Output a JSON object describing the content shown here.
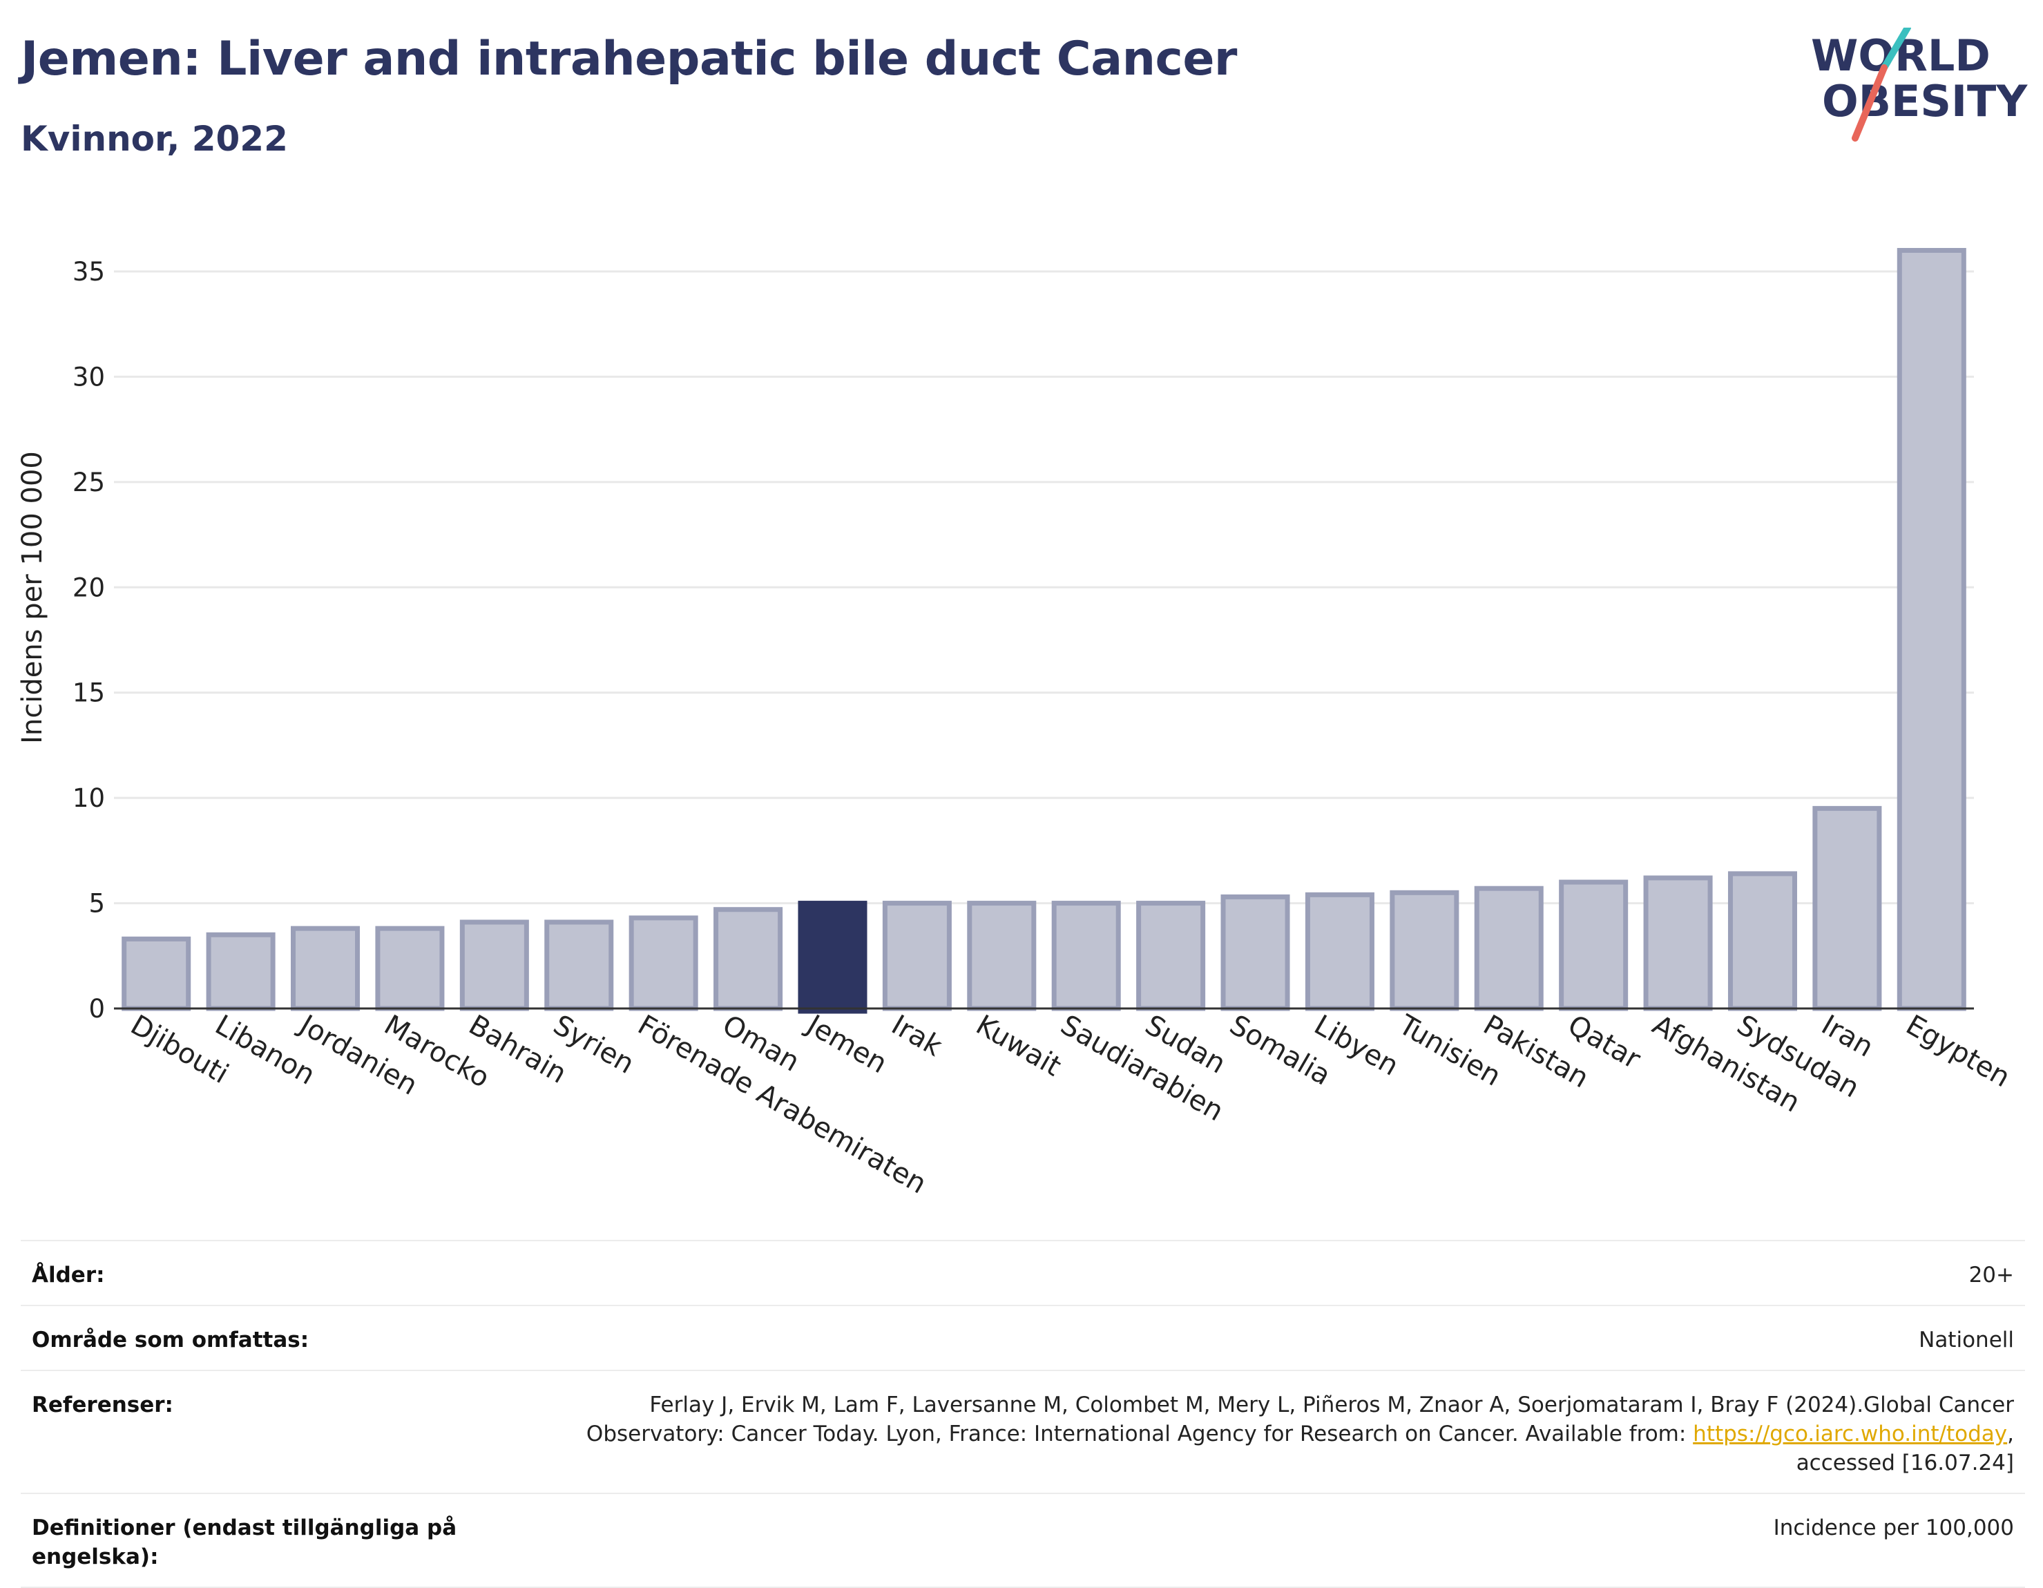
{
  "header": {
    "title": "Jemen: Liver and intrahepatic bile duct Cancer",
    "subtitle": "Kvinnor, 2022"
  },
  "logo": {
    "line1": "WORLD",
    "line2": "OBESITY",
    "colors": {
      "text": "#2d3561",
      "slash_teal": "#3bbfbf",
      "slash_coral": "#e8665a"
    }
  },
  "chart_data": {
    "type": "bar",
    "title": "",
    "xlabel": "",
    "ylabel": "Incidens per 100 000",
    "ylim": [
      0,
      37
    ],
    "yticks": [
      0,
      5,
      10,
      15,
      20,
      25,
      30,
      35
    ],
    "grid": true,
    "highlight": "Jemen",
    "colors": {
      "bar": "#bfc2d1",
      "bar_edge": "#9a9fb8",
      "highlight": "#2d3561"
    },
    "categories": [
      "Djibouti",
      "Libanon",
      "Jordanien",
      "Marocko",
      "Bahrain",
      "Syrien",
      "Förenade Arabemiraten",
      "Oman",
      "Jemen",
      "Irak",
      "Kuwait",
      "Saudiarabien",
      "Sudan",
      "Somalia",
      "Libyen",
      "Tunisien",
      "Pakistan",
      "Qatar",
      "Afghanistan",
      "Sydsudan",
      "Iran",
      "Egypten"
    ],
    "values": [
      3.3,
      3.5,
      3.8,
      3.8,
      4.1,
      4.1,
      4.3,
      4.7,
      5.0,
      5.0,
      5.0,
      5.0,
      5.0,
      5.3,
      5.4,
      5.5,
      5.7,
      6.0,
      6.2,
      6.4,
      9.5,
      36.0
    ]
  },
  "info": {
    "age_label": "Ålder:",
    "age_value": "20+",
    "area_label": "Område som omfattas:",
    "area_value": "Nationell",
    "ref_label": "Referenser:",
    "ref_text_1": "Ferlay J, Ervik M, Lam F, Laversanne M, Colombet M, Mery L, Piñeros M, Znaor A, Soerjomataram I, Bray F (2024).Global Cancer Observatory: Cancer Today. Lyon, France: International Agency for Research on Cancer. Available from: ",
    "ref_link": "https://gco.iarc.who.int/today",
    "ref_text_2": ", accessed [16.07.24]",
    "def_label": "Definitioner (endast tillgängliga på engelska):",
    "def_value": "Incidence per 100,000"
  }
}
